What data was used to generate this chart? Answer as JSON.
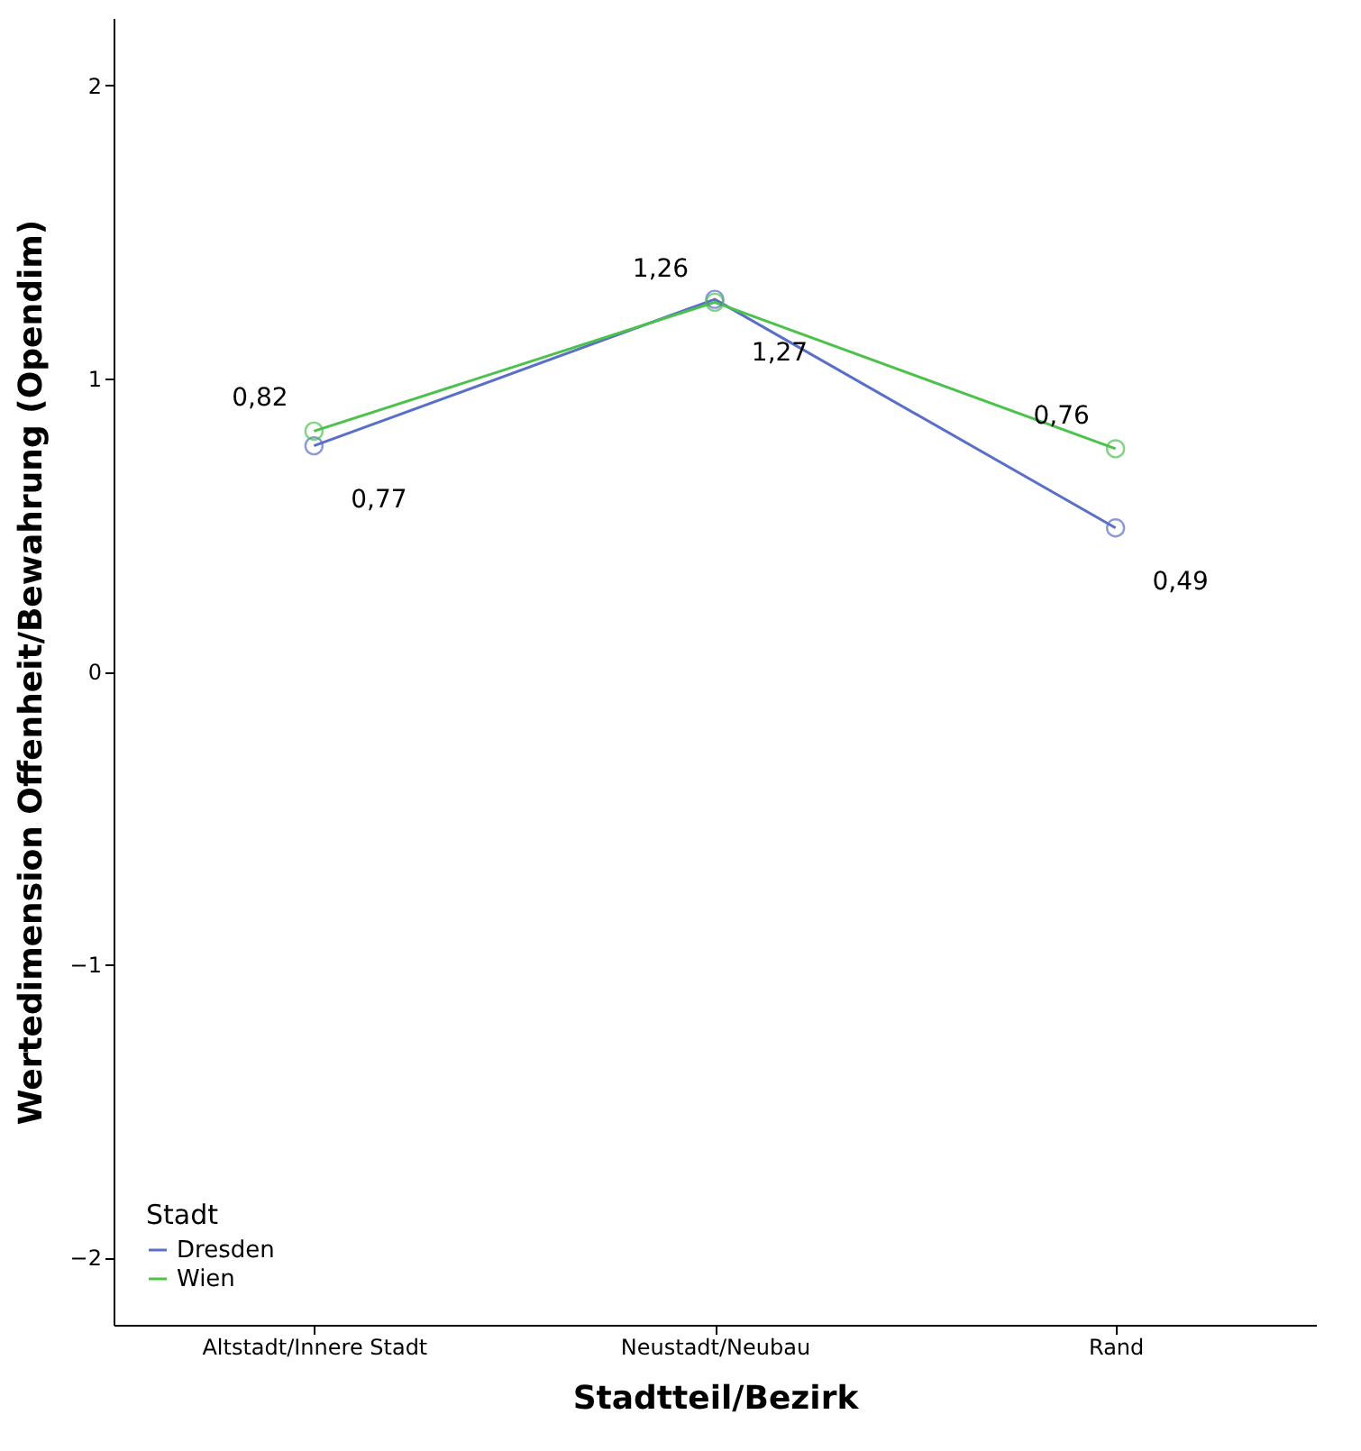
{
  "chart_data": {
    "type": "line",
    "xlabel": "Stadtteil/Bezirk",
    "ylabel": "Wertedimension Offenheit/Bewahrung (Opendim)",
    "legend_title": "Stadt",
    "legend": "bottom left",
    "marker": "circle",
    "grid": false,
    "categories": [
      "Altstadt/Innere Stadt",
      "Neustadt/Neubau",
      "Rand"
    ],
    "ylim": [
      -2.23,
      2.23
    ],
    "yticks": [
      -2,
      -1,
      0,
      1,
      2
    ],
    "series": [
      {
        "name": "Dresden",
        "color": "#5a6fc8",
        "values": [
          0.77,
          1.27,
          0.49
        ],
        "value_labels": [
          "0,77",
          "1,27",
          "0,49"
        ]
      },
      {
        "name": "Wien",
        "color": "#4cc24c",
        "values": [
          0.82,
          1.26,
          0.76
        ],
        "value_labels": [
          "0,82",
          "1,26",
          "0,76"
        ]
      }
    ]
  }
}
